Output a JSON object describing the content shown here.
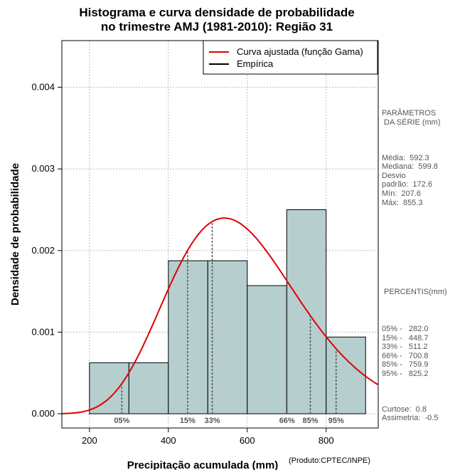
{
  "title_lines": [
    "Histograma e curva densidade de probabilidade",
    "no trimestre AMJ (1981-2010): Região 31"
  ],
  "chart_data": {
    "type": "bar",
    "title": "Histograma e curva densidade de probabilidade no trimestre AMJ (1981-2010): Região 31",
    "xlabel": "Precipitação acumulada (mm)",
    "ylabel": "Densidade de probabilidade",
    "xlim": [
      130,
      932
    ],
    "ylim": [
      0,
      0.0046
    ],
    "x_ticks": [
      200,
      400,
      600,
      800
    ],
    "y_ticks": [
      "0.000",
      "0.001",
      "0.002",
      "0.003",
      "0.004"
    ],
    "grid": true,
    "bins": [
      {
        "start": 200,
        "end": 300,
        "density": 0.000625
      },
      {
        "start": 300,
        "end": 400,
        "density": 0.000625
      },
      {
        "start": 400,
        "end": 500,
        "density": 0.001875
      },
      {
        "start": 500,
        "end": 600,
        "density": 0.001875
      },
      {
        "start": 600,
        "end": 700,
        "density": 0.00157
      },
      {
        "start": 700,
        "end": 800,
        "density": 0.0025
      },
      {
        "start": 800,
        "end": 900,
        "density": 0.00094
      }
    ],
    "gamma_fit": {
      "mean": 592.3,
      "sd": 172.6
    },
    "percentile_lines": [
      {
        "label": "05%",
        "value": 282.0
      },
      {
        "label": "15%",
        "value": 448.7
      },
      {
        "label": "33%",
        "value": 511.2
      },
      {
        "label": "66%",
        "value": 700.8
      },
      {
        "label": "85%",
        "value": 759.9
      },
      {
        "label": "95%",
        "value": 825.2
      }
    ],
    "legend": [
      {
        "label": "Curva ajustada (função Gama)",
        "color": "#e00000"
      },
      {
        "label": "Empírica",
        "color": "#000000"
      }
    ],
    "legend_position": "top-right",
    "colors": {
      "bar_fill": "#b6cece",
      "curve": "#e00000",
      "grid": "#bbbbbb",
      "percentile": "#555555"
    }
  },
  "side": {
    "params_heading": "PARÂMETROS\n DA SÉRIE (mm)",
    "params": "Média:  592.3\nMediana:  599.8\nDesvio\npadrão:  172.6\nMín:  207.6\nMáx:  855.3",
    "percentis_heading": " PERCENTIS(mm)",
    "percentis": "05% -   282.0\n15% -   448.7\n33% -   511.2\n66% -   700.8\n85% -   759.9\n95% -   825.2",
    "extras": "Curtose:  0.8\nAssimetria:  -0.5"
  },
  "credit": "(Produto:CPTEC/INPE)"
}
